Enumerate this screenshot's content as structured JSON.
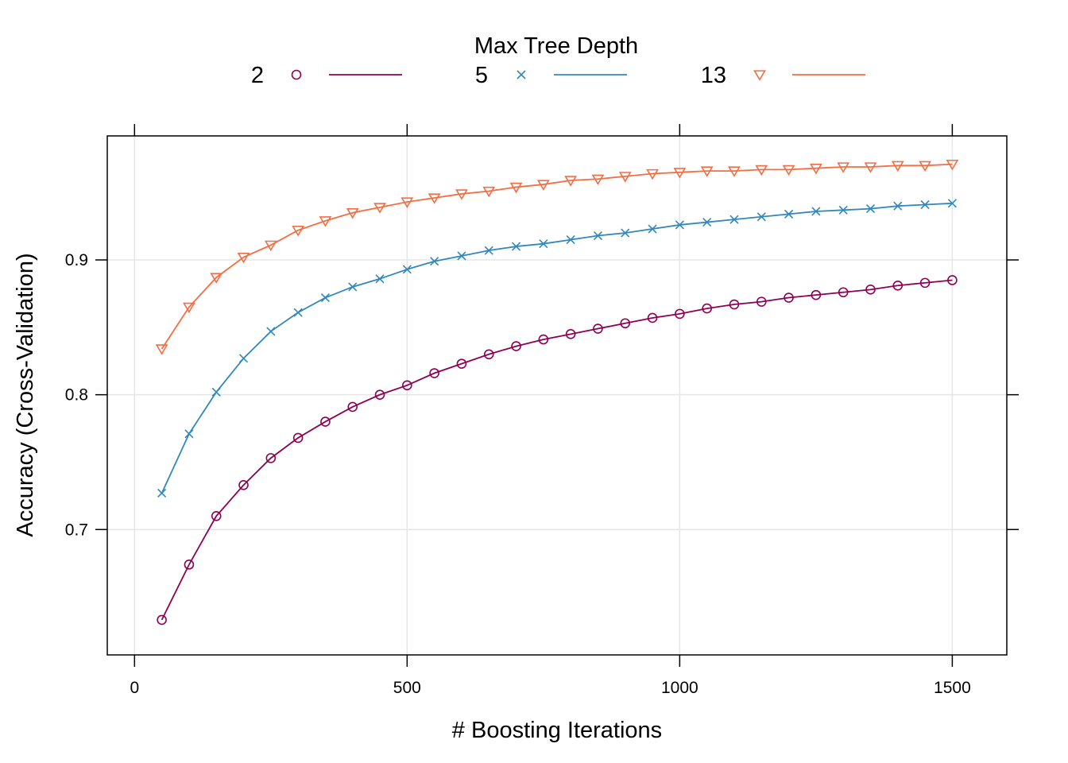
{
  "chart_data": {
    "type": "line",
    "legend_title": "Max Tree Depth",
    "xlabel": "# Boosting Iterations",
    "ylabel": "Accuracy (Cross-Validation)",
    "xlim": [
      -50,
      1600
    ],
    "ylim": [
      0.607,
      0.992
    ],
    "x_ticks": [
      0,
      500,
      1000,
      1500
    ],
    "y_ticks": [
      0.7,
      0.8,
      0.9
    ],
    "grid": true,
    "legend_position": "top",
    "x": [
      50,
      100,
      150,
      200,
      250,
      300,
      350,
      400,
      450,
      500,
      550,
      600,
      650,
      700,
      750,
      800,
      850,
      900,
      950,
      1000,
      1050,
      1100,
      1150,
      1200,
      1250,
      1300,
      1350,
      1400,
      1450,
      1500
    ],
    "series": [
      {
        "name": "2",
        "color": "#8e0152",
        "marker": "circle",
        "values": [
          0.633,
          0.674,
          0.71,
          0.733,
          0.753,
          0.768,
          0.78,
          0.791,
          0.8,
          0.807,
          0.816,
          0.823,
          0.83,
          0.836,
          0.841,
          0.845,
          0.849,
          0.853,
          0.857,
          0.86,
          0.864,
          0.867,
          0.869,
          0.872,
          0.874,
          0.876,
          0.878,
          0.881,
          0.883,
          0.885
        ]
      },
      {
        "name": "5",
        "color": "#3288bd",
        "marker": "cross",
        "values": [
          0.727,
          0.771,
          0.802,
          0.827,
          0.847,
          0.861,
          0.872,
          0.88,
          0.886,
          0.893,
          0.899,
          0.903,
          0.907,
          0.91,
          0.912,
          0.915,
          0.918,
          0.92,
          0.923,
          0.926,
          0.928,
          0.93,
          0.932,
          0.934,
          0.936,
          0.937,
          0.938,
          0.94,
          0.941,
          0.942
        ]
      },
      {
        "name": "13",
        "color": "#f46d43",
        "marker": "triangle-down",
        "values": [
          0.834,
          0.865,
          0.887,
          0.902,
          0.911,
          0.922,
          0.929,
          0.935,
          0.939,
          0.943,
          0.946,
          0.949,
          0.951,
          0.954,
          0.956,
          0.959,
          0.96,
          0.962,
          0.964,
          0.965,
          0.966,
          0.966,
          0.967,
          0.967,
          0.968,
          0.969,
          0.969,
          0.97,
          0.97,
          0.971
        ]
      }
    ]
  }
}
